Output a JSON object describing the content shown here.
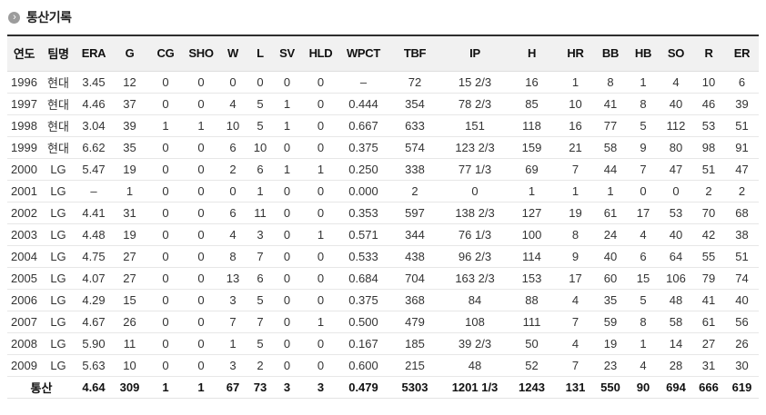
{
  "section": {
    "title": "통산기록",
    "icon_glyph": "›"
  },
  "table": {
    "headers": [
      "연도",
      "팀명",
      "ERA",
      "G",
      "CG",
      "SHO",
      "W",
      "L",
      "SV",
      "HLD",
      "WPCT",
      "TBF",
      "IP",
      "H",
      "HR",
      "BB",
      "HB",
      "SO",
      "R",
      "ER"
    ],
    "rows": [
      [
        "1996",
        "현대",
        "3.45",
        "12",
        "0",
        "0",
        "0",
        "0",
        "0",
        "0",
        "–",
        "72",
        "15 2/3",
        "16",
        "1",
        "8",
        "1",
        "4",
        "10",
        "6"
      ],
      [
        "1997",
        "현대",
        "4.46",
        "37",
        "0",
        "0",
        "4",
        "5",
        "1",
        "0",
        "0.444",
        "354",
        "78 2/3",
        "85",
        "10",
        "41",
        "8",
        "40",
        "46",
        "39"
      ],
      [
        "1998",
        "현대",
        "3.04",
        "39",
        "1",
        "1",
        "10",
        "5",
        "1",
        "0",
        "0.667",
        "633",
        "151",
        "118",
        "16",
        "77",
        "5",
        "112",
        "53",
        "51"
      ],
      [
        "1999",
        "현대",
        "6.62",
        "35",
        "0",
        "0",
        "6",
        "10",
        "0",
        "0",
        "0.375",
        "574",
        "123 2/3",
        "159",
        "21",
        "58",
        "9",
        "80",
        "98",
        "91"
      ],
      [
        "2000",
        "LG",
        "5.47",
        "19",
        "0",
        "0",
        "2",
        "6",
        "1",
        "1",
        "0.250",
        "338",
        "77 1/3",
        "69",
        "7",
        "44",
        "7",
        "47",
        "51",
        "47"
      ],
      [
        "2001",
        "LG",
        "–",
        "1",
        "0",
        "0",
        "0",
        "1",
        "0",
        "0",
        "0.000",
        "2",
        "0",
        "1",
        "1",
        "1",
        "0",
        "0",
        "2",
        "2"
      ],
      [
        "2002",
        "LG",
        "4.41",
        "31",
        "0",
        "0",
        "6",
        "11",
        "0",
        "0",
        "0.353",
        "597",
        "138 2/3",
        "127",
        "19",
        "61",
        "17",
        "53",
        "70",
        "68"
      ],
      [
        "2003",
        "LG",
        "4.48",
        "19",
        "0",
        "0",
        "4",
        "3",
        "0",
        "1",
        "0.571",
        "344",
        "76 1/3",
        "100",
        "8",
        "24",
        "4",
        "40",
        "42",
        "38"
      ],
      [
        "2004",
        "LG",
        "4.75",
        "27",
        "0",
        "0",
        "8",
        "7",
        "0",
        "0",
        "0.533",
        "438",
        "96 2/3",
        "114",
        "9",
        "40",
        "6",
        "64",
        "55",
        "51"
      ],
      [
        "2005",
        "LG",
        "4.07",
        "27",
        "0",
        "0",
        "13",
        "6",
        "0",
        "0",
        "0.684",
        "704",
        "163 2/3",
        "153",
        "17",
        "60",
        "15",
        "106",
        "79",
        "74"
      ],
      [
        "2006",
        "LG",
        "4.29",
        "15",
        "0",
        "0",
        "3",
        "5",
        "0",
        "0",
        "0.375",
        "368",
        "84",
        "88",
        "4",
        "35",
        "5",
        "48",
        "41",
        "40"
      ],
      [
        "2007",
        "LG",
        "4.67",
        "26",
        "0",
        "0",
        "7",
        "7",
        "0",
        "1",
        "0.500",
        "479",
        "108",
        "111",
        "7",
        "59",
        "8",
        "58",
        "61",
        "56"
      ],
      [
        "2008",
        "LG",
        "5.90",
        "11",
        "0",
        "0",
        "1",
        "5",
        "0",
        "0",
        "0.167",
        "185",
        "39 2/3",
        "50",
        "4",
        "19",
        "1",
        "14",
        "27",
        "26"
      ],
      [
        "2009",
        "LG",
        "5.63",
        "10",
        "0",
        "0",
        "3",
        "2",
        "0",
        "0",
        "0.600",
        "215",
        "48",
        "52",
        "7",
        "23",
        "4",
        "28",
        "31",
        "30"
      ]
    ],
    "total": {
      "label": "통산",
      "values": [
        "4.64",
        "309",
        "1",
        "1",
        "67",
        "73",
        "3",
        "3",
        "0.479",
        "5303",
        "1201 1/3",
        "1243",
        "131",
        "550",
        "90",
        "694",
        "666",
        "619"
      ]
    }
  },
  "colors": {
    "header_bg": "#f1f1f1",
    "table_top_border": "#2e2e2e",
    "row_border": "#e7e7e7",
    "header_text": "#111111",
    "cell_text": "#333333",
    "icon_bg": "#9c9c9c"
  }
}
